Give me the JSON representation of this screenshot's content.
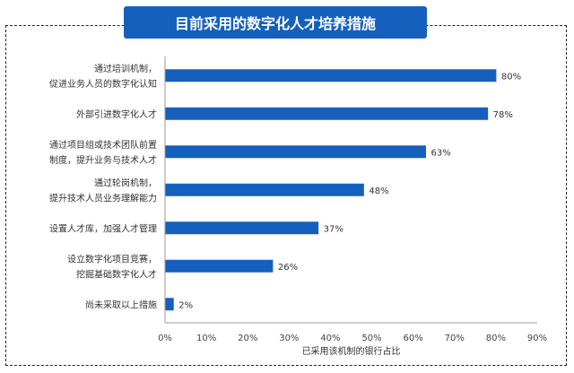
{
  "title": "目前采用的数字化人才培养措施",
  "chart_data": {
    "type": "bar",
    "orientation": "horizontal",
    "title": "目前采用的数字化人才培养措施",
    "xlabel": "已采用该机制的银行占比",
    "xlim": [
      0,
      90
    ],
    "xticks": [
      "0%",
      "10%",
      "20%",
      "30%",
      "40%",
      "50%",
      "60%",
      "70%",
      "80%",
      "90%"
    ],
    "categories": [
      [
        "通过培训机制，",
        "促进业务人员的数字化认知"
      ],
      [
        "外部引进数字化人才"
      ],
      [
        "通过项目组或技术团队前置",
        "制度，提升业务与技术人才"
      ],
      [
        "通过轮岗机制，",
        "提升技术人员业务理解能力"
      ],
      [
        "设置人才库，加强人才管理"
      ],
      [
        "设立数字化项目竞赛，",
        "挖掘基础数字化人才"
      ],
      [
        "尚未采取以上措施"
      ]
    ],
    "values": [
      80,
      78,
      63,
      48,
      37,
      26,
      2
    ],
    "value_labels": [
      "80%",
      "78%",
      "63%",
      "48%",
      "37%",
      "26%",
      "2%"
    ],
    "bar_color": "#1560bd",
    "grid": false
  }
}
